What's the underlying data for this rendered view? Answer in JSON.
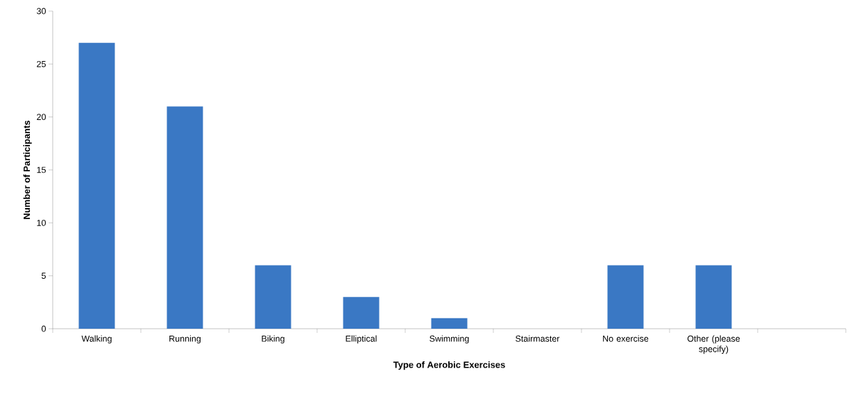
{
  "chart_data": {
    "type": "bar",
    "xlabel": "Type of Aerobic Exercises",
    "ylabel": "Number of Participants",
    "categories": [
      "Walking",
      "Running",
      "Biking",
      "Elliptical",
      "Swimming",
      "Stairmaster",
      "No exercise",
      "Other (please specify)",
      null
    ],
    "values": [
      27,
      21,
      6,
      3,
      1,
      0,
      6,
      6,
      null
    ],
    "color": "#3a78c4",
    "ylim": [
      0,
      30
    ],
    "yticks": [
      0,
      5,
      10,
      15,
      20,
      25,
      30
    ],
    "grid": false
  }
}
